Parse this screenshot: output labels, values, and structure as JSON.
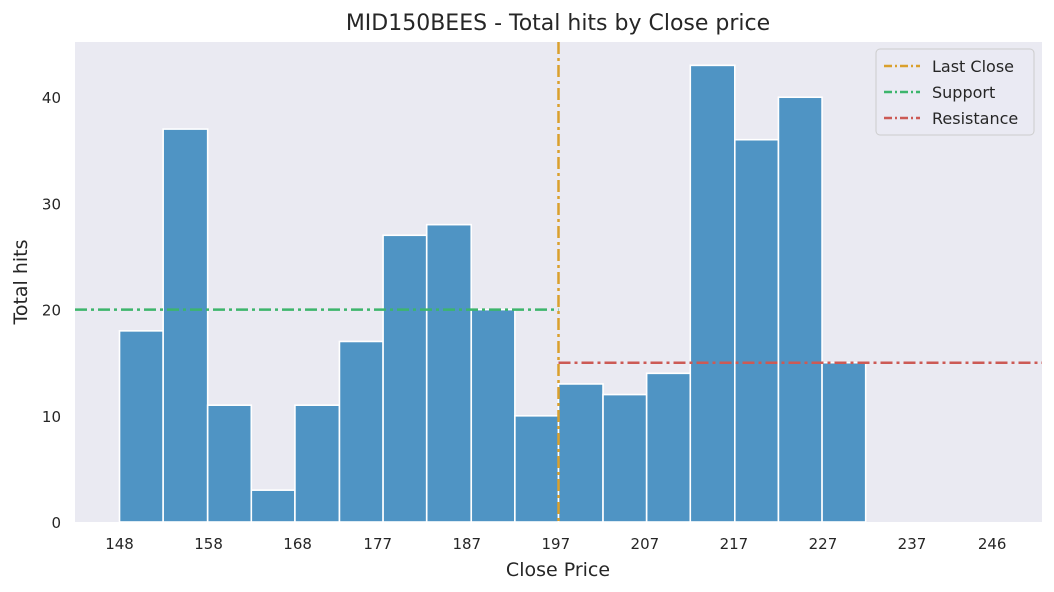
{
  "chart_data": {
    "type": "bar",
    "title": "MID150BEES - Total hits by Close price",
    "xlabel": "Close Price",
    "ylabel": "Total hits",
    "xlim": [
      143.0,
      251.6
    ],
    "ylim": [
      0,
      45.2
    ],
    "xticks": [
      148,
      158,
      168,
      177,
      187,
      197,
      207,
      217,
      227,
      237,
      246
    ],
    "yticks": [
      0,
      10,
      20,
      30,
      40
    ],
    "grid": false,
    "bin_edges": [
      148.0,
      152.9,
      157.9,
      162.8,
      167.7,
      172.7,
      177.6,
      182.5,
      187.5,
      192.4,
      197.3,
      202.3,
      207.2,
      212.1,
      217.1,
      222.0,
      226.9,
      231.8
    ],
    "values": [
      18,
      37,
      11,
      3,
      11,
      17,
      27,
      28,
      20,
      10,
      13,
      12,
      14,
      43,
      36,
      40,
      15
    ],
    "bar_color": "#4f94c4",
    "reference_lines": [
      {
        "name": "Last Close",
        "orientation": "vertical",
        "x": 197.3,
        "color": "#daa02d",
        "style": "dash-dot"
      },
      {
        "name": "Support",
        "orientation": "horizontal",
        "y": 20,
        "x_range": [
          143.0,
          197.3
        ],
        "color": "#3db56c",
        "style": "dash-dot"
      },
      {
        "name": "Resistance",
        "orientation": "horizontal",
        "y": 15,
        "x_range": [
          197.3,
          251.6
        ],
        "color": "#cc5a55",
        "style": "dash-dot"
      }
    ],
    "legend": {
      "placement": "top-right",
      "entries": [
        "Last Close",
        "Support",
        "Resistance"
      ]
    },
    "background_color": "#eaeaf2"
  }
}
